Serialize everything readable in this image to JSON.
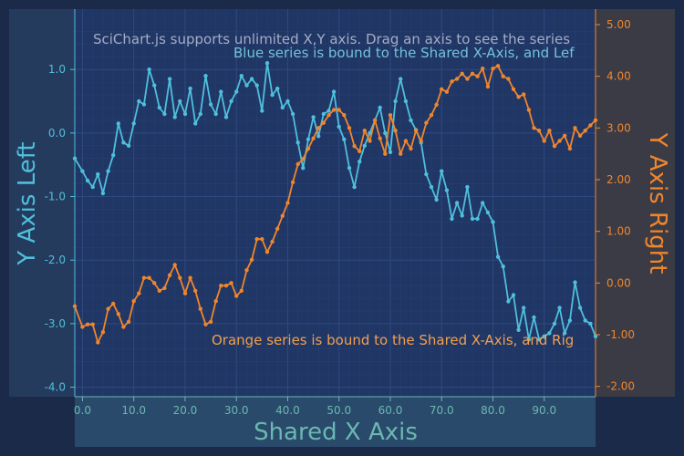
{
  "colors": {
    "background": "#1c2a4a",
    "plot_bg": "#203665",
    "grid_major": "#2f4a80",
    "grid_minor": "#273f72",
    "left_axis_panel": "#253b5d",
    "right_axis_panel": "#3b3b46",
    "bottom_axis_panel": "#2a4a6b",
    "blue": "#4fbfdc",
    "blue_label": "#74c2d9",
    "orange": "#f0862c",
    "orange_label": "#f0a050",
    "xaxis_label": "#6ab8b0",
    "notice_text": "#a5adc4"
  },
  "annotations": {
    "notice": "SciChart.js supports unlimited X,Y axis. Drag an axis to see the series",
    "blue_note": "Blue series is bound to the Shared X-Axis, and Lef",
    "orange_note": "Orange series is bound to the Shared X-Axis, and Rig"
  },
  "chart_data": {
    "type": "line",
    "title": "",
    "xlabel": "Shared X Axis",
    "ylabel_left": "Y Axis Left",
    "ylabel_right": "Y Axis Right",
    "xlim": [
      -1.5,
      100
    ],
    "ylim_left": [
      -4.15,
      1.95
    ],
    "ylim_right": [
      -2.2,
      5.3
    ],
    "x_ticks": [
      "0.0",
      "10.0",
      "20.0",
      "30.0",
      "40.0",
      "50.0",
      "60.0",
      "70.0",
      "80.0",
      "90.0"
    ],
    "x_tick_values": [
      0,
      10,
      20,
      30,
      40,
      50,
      60,
      70,
      80,
      90
    ],
    "y_left_ticks": [
      "1.0",
      "0.0",
      "-1.0",
      "-2.0",
      "-3.0",
      "-4.0"
    ],
    "y_left_tick_values": [
      1,
      0,
      -1,
      -2,
      -3,
      -4
    ],
    "y_right_ticks": [
      "5.00",
      "4.00",
      "3.00",
      "2.00",
      "1.00",
      "0.00",
      "-1.00",
      "-2.00"
    ],
    "y_right_tick_values": [
      5,
      4,
      3,
      2,
      1,
      0,
      -1,
      -2
    ],
    "grid": true,
    "legend": "none",
    "series": [
      {
        "axis": "left",
        "color": "#4fbfdc",
        "x": [
          -1.5,
          0,
          1,
          2,
          3,
          4,
          5,
          6,
          7,
          8,
          9,
          10,
          11,
          12,
          13,
          14,
          15,
          16,
          17,
          18,
          19,
          20,
          21,
          22,
          23,
          24,
          25,
          26,
          27,
          28,
          29,
          30,
          31,
          32,
          33,
          34,
          35,
          36,
          37,
          38,
          39,
          40,
          41,
          42,
          43,
          44,
          45,
          46,
          47,
          48,
          49,
          50,
          51,
          52,
          53,
          54,
          55,
          56,
          57,
          58,
          59,
          60,
          61,
          62,
          63,
          64,
          65,
          66,
          67,
          68,
          69,
          70,
          71,
          72,
          73,
          74,
          75,
          76,
          77,
          78,
          79,
          80,
          81,
          82,
          83,
          84,
          85,
          86,
          87,
          88,
          89,
          90,
          91,
          92,
          93,
          94,
          95,
          96,
          97,
          98,
          99,
          100
        ],
        "y": [
          -0.4,
          -0.6,
          -0.75,
          -0.85,
          -0.65,
          -0.95,
          -0.6,
          -0.35,
          0.15,
          -0.15,
          -0.2,
          0.15,
          0.5,
          0.45,
          1.0,
          0.75,
          0.4,
          0.3,
          0.85,
          0.25,
          0.5,
          0.3,
          0.7,
          0.15,
          0.3,
          0.9,
          0.45,
          0.3,
          0.65,
          0.25,
          0.5,
          0.65,
          0.9,
          0.75,
          0.85,
          0.75,
          0.35,
          1.1,
          0.6,
          0.7,
          0.4,
          0.5,
          0.3,
          -0.15,
          -0.55,
          -0.1,
          0.25,
          -0.05,
          0.3,
          0.35,
          0.65,
          0.1,
          -0.1,
          -0.55,
          -0.85,
          -0.45,
          -0.2,
          0.0,
          0.2,
          0.4,
          0.0,
          -0.3,
          0.5,
          0.85,
          0.5,
          0.2,
          0.05,
          -0.15,
          -0.65,
          -0.85,
          -1.05,
          -0.6,
          -0.9,
          -1.35,
          -1.1,
          -1.3,
          -0.85,
          -1.35,
          -1.35,
          -1.1,
          -1.25,
          -1.4,
          -1.95,
          -2.1,
          -2.65,
          -2.55,
          -3.1,
          -2.75,
          -3.25,
          -2.9,
          -3.25,
          -3.2,
          -3.15,
          -3.0,
          -2.75,
          -3.15,
          -2.95,
          -2.35,
          -2.75,
          -2.95,
          -3.0,
          -3.2
        ],
        "comment_removed": true
      },
      {
        "axis": "right",
        "color": "#f0862c",
        "x": [
          -1.5,
          0,
          1,
          2,
          3,
          4,
          5,
          6,
          7,
          8,
          9,
          10,
          11,
          12,
          13,
          14,
          15,
          16,
          17,
          18,
          19,
          20,
          21,
          22,
          23,
          24,
          25,
          26,
          27,
          28,
          29,
          30,
          31,
          32,
          33,
          34,
          35,
          36,
          37,
          38,
          39,
          40,
          41,
          42,
          43,
          44,
          45,
          46,
          47,
          48,
          49,
          50,
          51,
          52,
          53,
          54,
          55,
          56,
          57,
          58,
          59,
          60,
          61,
          62,
          63,
          64,
          65,
          66,
          67,
          68,
          69,
          70,
          71,
          72,
          73,
          74,
          75,
          76,
          77,
          78,
          79,
          80,
          81,
          82,
          83,
          84,
          85,
          86,
          87,
          88,
          89,
          90,
          91,
          92,
          93,
          94,
          95,
          96,
          97,
          98,
          99,
          100
        ],
        "y": [
          -0.45,
          -0.85,
          -0.8,
          -0.8,
          -1.15,
          -0.95,
          -0.5,
          -0.4,
          -0.6,
          -0.85,
          -0.75,
          -0.35,
          -0.2,
          0.1,
          0.1,
          0.0,
          -0.15,
          -0.1,
          0.15,
          0.35,
          0.1,
          -0.2,
          0.1,
          -0.15,
          -0.5,
          -0.8,
          -0.75,
          -0.35,
          -0.05,
          -0.05,
          0.0,
          -0.25,
          -0.15,
          0.25,
          0.45,
          0.85,
          0.85,
          0.6,
          0.8,
          1.05,
          1.3,
          1.55,
          1.95,
          2.3,
          2.4,
          2.6,
          2.8,
          3.0,
          3.1,
          3.25,
          3.35,
          3.35,
          3.25,
          3.0,
          2.65,
          2.55,
          2.95,
          2.75,
          3.15,
          2.8,
          2.5,
          3.25,
          2.95,
          2.5,
          2.75,
          2.6,
          2.95,
          2.75,
          3.1,
          3.25,
          3.45,
          3.75,
          3.7,
          3.9,
          3.95,
          4.05,
          3.95,
          4.05,
          4.0,
          4.15,
          3.8,
          4.15,
          4.2,
          4.0,
          3.95,
          3.75,
          3.6,
          3.65,
          3.35,
          3.0,
          2.95,
          2.75,
          2.95,
          2.65,
          2.75,
          2.85,
          2.6,
          3.0,
          2.85,
          2.95,
          3.05,
          3.15
        ],
        "comment_removed": true
      }
    ]
  }
}
